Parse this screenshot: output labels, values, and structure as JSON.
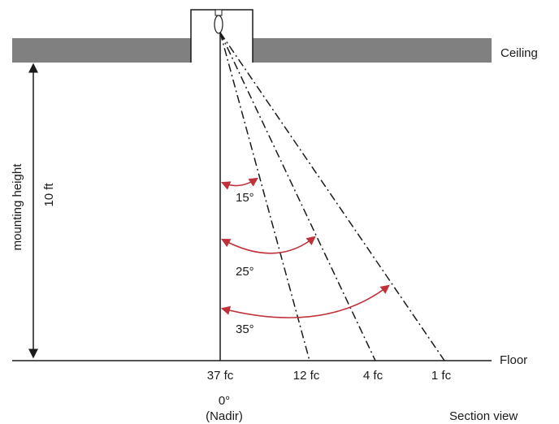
{
  "labels": {
    "ceiling": "Ceiling",
    "floor": "Floor",
    "mounting_height": "mounting height",
    "height_value": "10 ft",
    "section_view": "Section view",
    "nadir_angle": "0°",
    "nadir_label": "(Nadir)"
  },
  "angles": [
    {
      "label": "15°"
    },
    {
      "label": "25°"
    },
    {
      "label": "35°"
    }
  ],
  "illuminance": [
    {
      "label": "37 fc"
    },
    {
      "label": "12 fc"
    },
    {
      "label": "4 fc"
    },
    {
      "label": "1 fc"
    }
  ],
  "colors": {
    "ceiling": "#808080",
    "arrows": "#c0323a",
    "lines": "#1a1a1a"
  }
}
